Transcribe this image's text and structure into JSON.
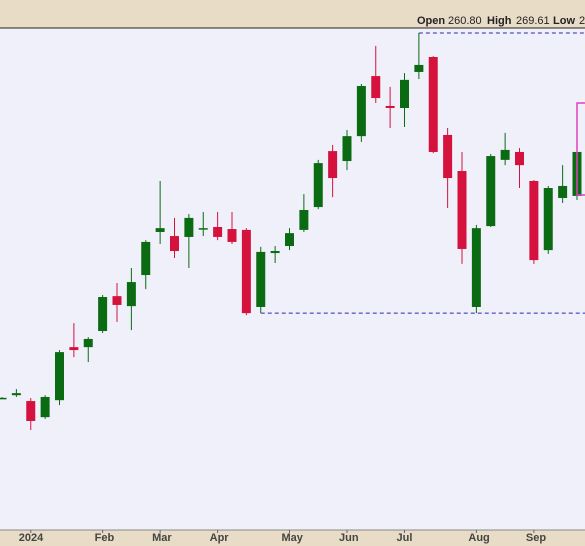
{
  "header": {
    "open_label": "Open",
    "open": "260.80",
    "high_label": "High",
    "high": "269.61",
    "low_label": "Low",
    "low": "2"
  },
  "chart_data": {
    "type": "candlestick",
    "categories": [
      null,
      null,
      "2024",
      null,
      null,
      null,
      null,
      "Feb",
      null,
      null,
      null,
      "Mar",
      null,
      null,
      null,
      "Apr",
      null,
      null,
      null,
      null,
      "May",
      null,
      null,
      null,
      "Jun",
      null,
      null,
      null,
      "Jul",
      null,
      null,
      null,
      null,
      "Aug",
      null,
      null,
      null,
      "Sep",
      null,
      null,
      null
    ],
    "open": [
      145.0,
      146.0,
      144.0,
      138.5,
      144.3,
      162.4,
      162.4,
      167.9,
      179.8,
      176.4,
      187.0,
      201.7,
      200.3,
      200.0,
      202.7,
      203.4,
      202.7,
      202.4,
      176.1,
      194.5,
      196.9,
      202.4,
      210.2,
      229.3,
      225.9,
      234.4,
      254.9,
      244.7,
      244.0,
      256.3,
      261.4,
      234.8,
      222.5,
      176.1,
      203.7,
      226.3,
      229.0,
      219.1,
      195.5,
      213.3,
      214.0
    ],
    "high": [
      145.4,
      148.1,
      145.0,
      146.0,
      161.4,
      170.6,
      165.8,
      180.2,
      184.3,
      189.4,
      198.9,
      219.1,
      206.5,
      207.8,
      208.5,
      208.5,
      208.5,
      203.0,
      196.6,
      196.9,
      203.0,
      214.6,
      226.3,
      231.4,
      236.5,
      252.2,
      265.2,
      251.2,
      255.9,
      269.61,
      261.7,
      237.2,
      229.0,
      204.1,
      228.3,
      235.5,
      230.3,
      219.4,
      217.4,
      224.5,
      233.1
    ],
    "low": [
      144.7,
      145.4,
      134.1,
      137.9,
      142.6,
      159.0,
      157.3,
      167.2,
      171.0,
      168.2,
      182.2,
      197.6,
      192.8,
      189.4,
      200.3,
      198.9,
      197.6,
      173.3,
      174.0,
      191.1,
      195.5,
      201.7,
      209.5,
      213.6,
      222.8,
      232.4,
      245.7,
      237.2,
      237.5,
      253.9,
      228.6,
      209.9,
      190.8,
      174.0,
      203.4,
      224.5,
      216.7,
      190.8,
      194.2,
      211.6,
      212.6
    ],
    "close": [
      145.1,
      146.7,
      137.2,
      145.4,
      160.7,
      161.4,
      165.2,
      179.5,
      176.8,
      184.6,
      198.3,
      203.0,
      195.2,
      206.5,
      203.0,
      200.0,
      198.3,
      174.0,
      194.9,
      195.2,
      201.3,
      209.2,
      225.2,
      220.1,
      234.4,
      251.5,
      247.4,
      244.0,
      253.6,
      258.7,
      229.0,
      220.1,
      195.9,
      203.0,
      227.6,
      229.7,
      224.5,
      192.1,
      216.7,
      217.4,
      229.0
    ],
    "up_color": "#0b6b12",
    "down_color": "#d5123e",
    "ylim": [
      100,
      271.3
    ],
    "reference_lines": [
      {
        "value": 269.61,
        "color": "#2a2aa8"
      },
      {
        "value": 174.0,
        "color": "#2a2aa8"
      }
    ]
  }
}
